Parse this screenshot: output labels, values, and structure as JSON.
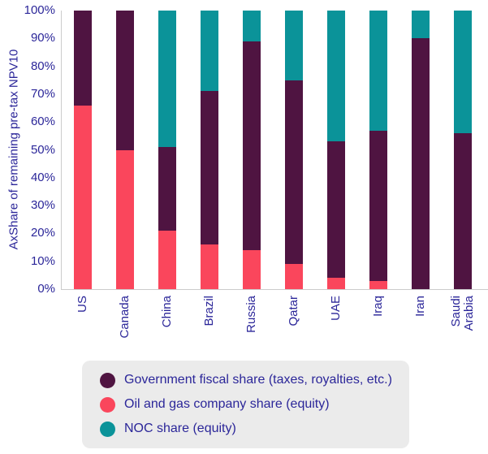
{
  "chart_data": {
    "type": "bar",
    "stacked": true,
    "title": "",
    "xlabel": "",
    "ylabel": "AxShare of remaining pre-tax NPV10",
    "ylim": [
      0,
      100
    ],
    "grid": false,
    "legend_position": "bottom",
    "yticks_top_down": [
      "100%",
      "90%",
      "80%",
      "70%",
      "60%",
      "50%",
      "40%",
      "30%",
      "20%",
      "10%",
      "0%"
    ],
    "categories": [
      "US",
      "Canada",
      "China",
      "Brazil",
      "Russia",
      "Qatar",
      "UAE",
      "Iraq",
      "Iran",
      "Saudi Arabia"
    ],
    "series": [
      {
        "key": "company",
        "name": "Oil and gas company share (equity)",
        "color": "#fa465c",
        "values": [
          66,
          50,
          21,
          16,
          14,
          9,
          4,
          3,
          0,
          0
        ]
      },
      {
        "key": "government",
        "name": "Government fiscal share (taxes, royalties, etc.)",
        "color": "#4f1441",
        "values": [
          34,
          50,
          30,
          55,
          75,
          66,
          49,
          54,
          90,
          56
        ]
      },
      {
        "key": "noc",
        "name": "NOC share (equity)",
        "color": "#0b9399",
        "values": [
          0,
          0,
          49,
          29,
          11,
          25,
          47,
          43,
          10,
          44
        ]
      }
    ]
  },
  "legend": {
    "items": [
      {
        "key": "government",
        "label": "Government fiscal share (taxes, royalties, etc.)",
        "color": "#4f1441"
      },
      {
        "key": "company",
        "label": "Oil and gas company share (equity)",
        "color": "#fa465c"
      },
      {
        "key": "noc",
        "label": "NOC share (equity)",
        "color": "#0b9399"
      }
    ]
  },
  "colors": {
    "text_navy": "#2b2699",
    "axis_line": "#cccccc",
    "legend_background": "#ebebeb",
    "background": "#ffffff"
  }
}
